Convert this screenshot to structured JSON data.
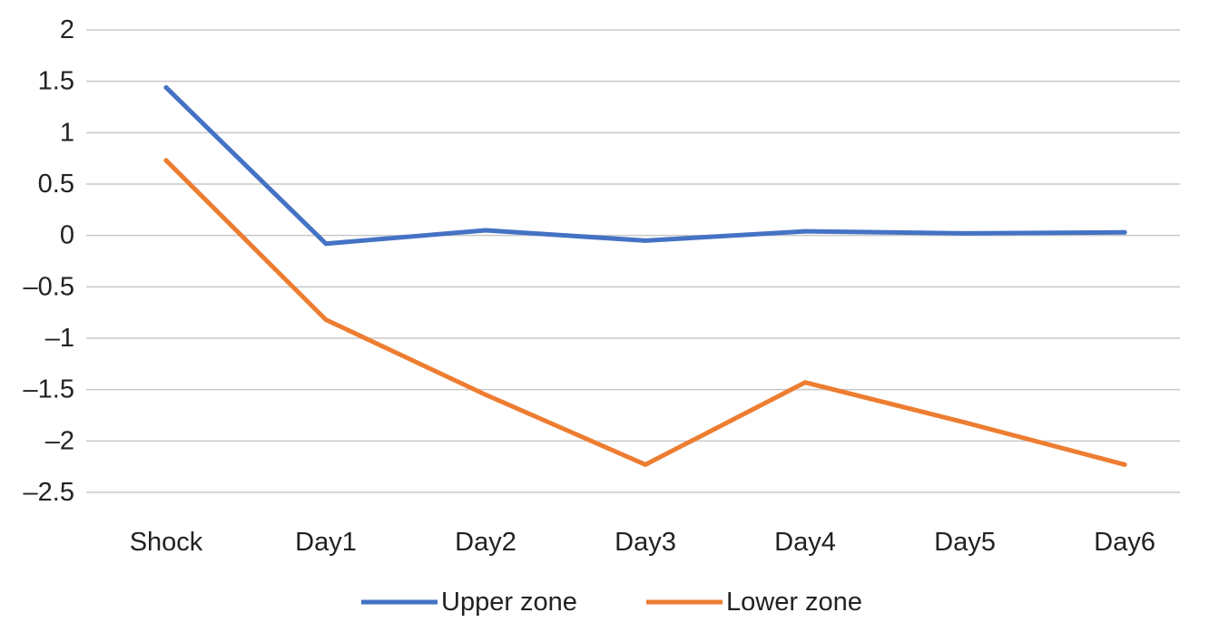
{
  "chart_data": {
    "type": "line",
    "categories": [
      "Shock",
      "Day1",
      "Day2",
      "Day3",
      "Day4",
      "Day5",
      "Day6"
    ],
    "series": [
      {
        "name": "Upper zone",
        "color": "#4472C4",
        "values": [
          1.44,
          -0.08,
          0.05,
          -0.05,
          0.04,
          0.02,
          0.03
        ]
      },
      {
        "name": "Lower zone",
        "color": "#ED7D31",
        "values": [
          0.73,
          -0.82,
          -1.55,
          -2.23,
          -1.43,
          -1.82,
          -2.23
        ]
      }
    ],
    "y_ticks": [
      "2",
      "1.5",
      "1",
      "0.5",
      "0",
      "–0.5",
      "–1",
      "–1.5",
      "–2",
      "–2.5"
    ],
    "y_tick_values": [
      2,
      1.5,
      1,
      0.5,
      0,
      -0.5,
      -1,
      -1.5,
      -2,
      -2.5
    ],
    "ylim": [
      -2.5,
      2
    ],
    "grid": true,
    "gridline_color": "#C8C8C8",
    "legend_position": "bottom",
    "title": "",
    "xlabel": "",
    "ylabel": ""
  }
}
